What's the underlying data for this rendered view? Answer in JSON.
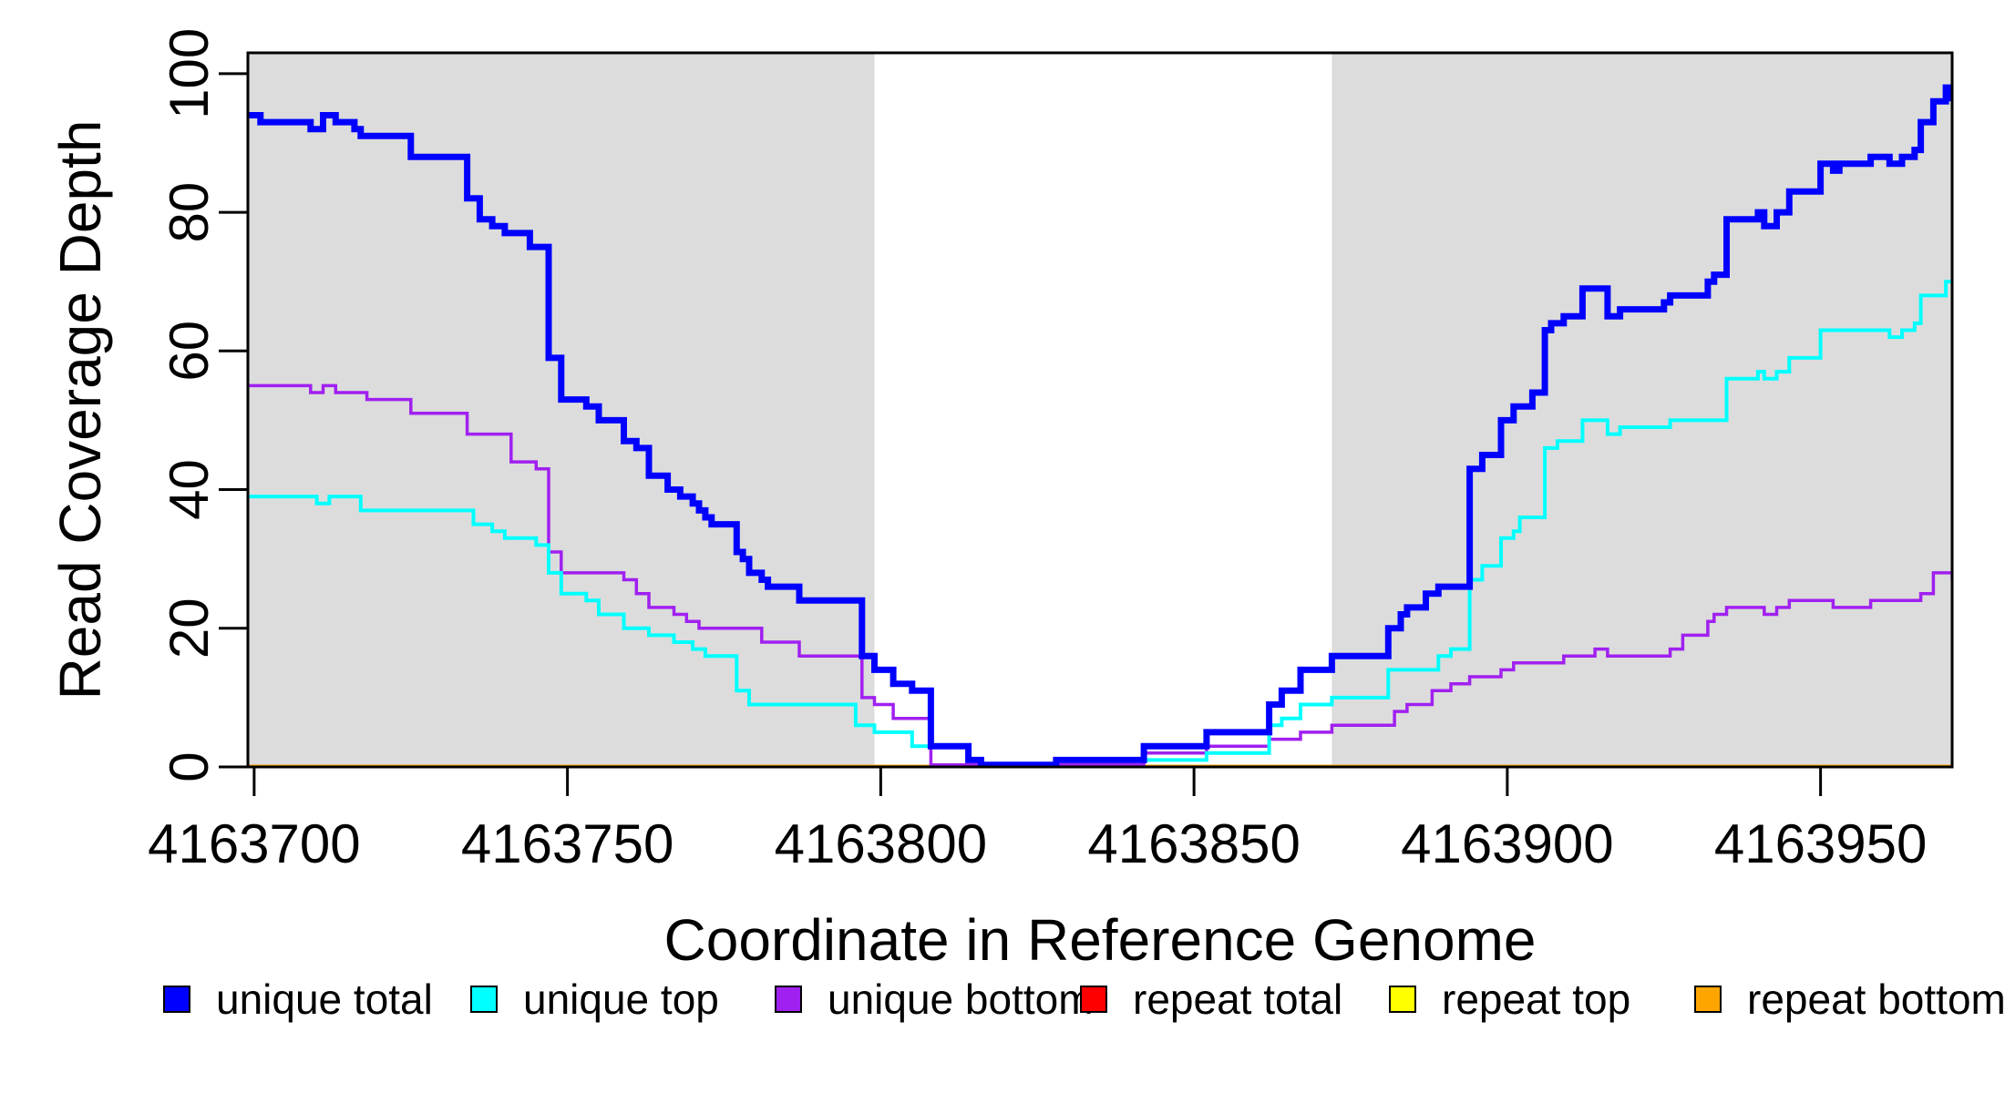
{
  "page": {
    "background": "#FFFFFF"
  },
  "chart_data": {
    "type": "line",
    "subtype": "step",
    "title": "",
    "xlabel": "Coordinate in Reference Genome",
    "ylabel": "Read Coverage Depth",
    "xlim": [
      4163699,
      4163971
    ],
    "ylim": [
      0,
      103
    ],
    "x_ticks": [
      4163700,
      4163750,
      4163800,
      4163850,
      4163900,
      4163950
    ],
    "y_ticks": [
      0,
      20,
      40,
      60,
      80,
      100
    ],
    "grid": false,
    "legend_position": "bottom",
    "plot_background": "#FFFFFF",
    "shaded_band_color": "#DCDCDC",
    "shaded_bands": [
      [
        4163699,
        4163799
      ],
      [
        4163872,
        4163971
      ]
    ],
    "legend": [
      {
        "label": "unique total",
        "color": "#0000FF"
      },
      {
        "label": "unique top",
        "color": "#00FFFF"
      },
      {
        "label": "unique bottom",
        "color": "#A020F0"
      },
      {
        "label": "repeat total",
        "color": "#FF0000"
      },
      {
        "label": "repeat top",
        "color": "#FFFF00"
      },
      {
        "label": "repeat bottom",
        "color": "#FFA500"
      }
    ],
    "series": [
      {
        "name": "unique total",
        "color": "#0000FF",
        "steps": [
          [
            4163699,
            94
          ],
          [
            4163701,
            93
          ],
          [
            4163709,
            92
          ],
          [
            4163711,
            94
          ],
          [
            4163713,
            93
          ],
          [
            4163716,
            92
          ],
          [
            4163717,
            91
          ],
          [
            4163725,
            88
          ],
          [
            4163734,
            82
          ],
          [
            4163736,
            79
          ],
          [
            4163738,
            78
          ],
          [
            4163740,
            77
          ],
          [
            4163744,
            75
          ],
          [
            4163747,
            59
          ],
          [
            4163749,
            53
          ],
          [
            4163753,
            52
          ],
          [
            4163755,
            50
          ],
          [
            4163759,
            47
          ],
          [
            4163761,
            46
          ],
          [
            4163763,
            42
          ],
          [
            4163766,
            40
          ],
          [
            4163768,
            39
          ],
          [
            4163770,
            38
          ],
          [
            4163771,
            37
          ],
          [
            4163772,
            36
          ],
          [
            4163773,
            35
          ],
          [
            4163777,
            31
          ],
          [
            4163778,
            30
          ],
          [
            4163779,
            28
          ],
          [
            4163781,
            27
          ],
          [
            4163782,
            26
          ],
          [
            4163787,
            24
          ],
          [
            4163797,
            16
          ],
          [
            4163799,
            14
          ],
          [
            4163802,
            12
          ],
          [
            4163805,
            11
          ],
          [
            4163808,
            3
          ],
          [
            4163814,
            1
          ],
          [
            4163816,
            0.3
          ],
          [
            4163828,
            1
          ],
          [
            4163842,
            3
          ],
          [
            4163852,
            5
          ],
          [
            4163862,
            9
          ],
          [
            4163864,
            11
          ],
          [
            4163867,
            14
          ],
          [
            4163872,
            16
          ],
          [
            4163881,
            20
          ],
          [
            4163883,
            22
          ],
          [
            4163884,
            23
          ],
          [
            4163887,
            25
          ],
          [
            4163889,
            26
          ],
          [
            4163894,
            43
          ],
          [
            4163896,
            45
          ],
          [
            4163899,
            50
          ],
          [
            4163901,
            52
          ],
          [
            4163904,
            54
          ],
          [
            4163906,
            63
          ],
          [
            4163907,
            64
          ],
          [
            4163909,
            65
          ],
          [
            4163912,
            69
          ],
          [
            4163916,
            65
          ],
          [
            4163918,
            66
          ],
          [
            4163925,
            67
          ],
          [
            4163926,
            68
          ],
          [
            4163932,
            70
          ],
          [
            4163933,
            71
          ],
          [
            4163935,
            79
          ],
          [
            4163940,
            80
          ],
          [
            4163941,
            78
          ],
          [
            4163943,
            80
          ],
          [
            4163945,
            83
          ],
          [
            4163950,
            87
          ],
          [
            4163952,
            86
          ],
          [
            4163953,
            87
          ],
          [
            4163958,
            88
          ],
          [
            4163961,
            87
          ],
          [
            4163963,
            88
          ],
          [
            4163965,
            89
          ],
          [
            4163966,
            93
          ],
          [
            4163968,
            96
          ],
          [
            4163970,
            98
          ],
          [
            4163971,
            96
          ]
        ]
      },
      {
        "name": "unique top",
        "color": "#00FFFF",
        "steps": [
          [
            4163699,
            39
          ],
          [
            4163710,
            38
          ],
          [
            4163712,
            39
          ],
          [
            4163717,
            37
          ],
          [
            4163735,
            35
          ],
          [
            4163738,
            34
          ],
          [
            4163740,
            33
          ],
          [
            4163745,
            32
          ],
          [
            4163747,
            28
          ],
          [
            4163749,
            25
          ],
          [
            4163753,
            24
          ],
          [
            4163755,
            22
          ],
          [
            4163759,
            20
          ],
          [
            4163763,
            19
          ],
          [
            4163767,
            18
          ],
          [
            4163770,
            17
          ],
          [
            4163772,
            16
          ],
          [
            4163777,
            11
          ],
          [
            4163779,
            9
          ],
          [
            4163796,
            6
          ],
          [
            4163799,
            5
          ],
          [
            4163805,
            3
          ],
          [
            4163814,
            1
          ],
          [
            4163816,
            0.3
          ],
          [
            4163828,
            1
          ],
          [
            4163852,
            2
          ],
          [
            4163862,
            6
          ],
          [
            4163864,
            7
          ],
          [
            4163867,
            9
          ],
          [
            4163872,
            10
          ],
          [
            4163881,
            14
          ],
          [
            4163889,
            16
          ],
          [
            4163891,
            17
          ],
          [
            4163894,
            27
          ],
          [
            4163896,
            29
          ],
          [
            4163899,
            33
          ],
          [
            4163901,
            34
          ],
          [
            4163902,
            36
          ],
          [
            4163906,
            46
          ],
          [
            4163908,
            47
          ],
          [
            4163912,
            50
          ],
          [
            4163916,
            48
          ],
          [
            4163918,
            49
          ],
          [
            4163926,
            50
          ],
          [
            4163935,
            56
          ],
          [
            4163940,
            57
          ],
          [
            4163941,
            56
          ],
          [
            4163943,
            57
          ],
          [
            4163945,
            59
          ],
          [
            4163950,
            63
          ],
          [
            4163961,
            62
          ],
          [
            4163963,
            63
          ],
          [
            4163965,
            64
          ],
          [
            4163966,
            68
          ],
          [
            4163970,
            70
          ]
        ]
      },
      {
        "name": "unique bottom",
        "color": "#A020F0",
        "steps": [
          [
            4163699,
            55
          ],
          [
            4163709,
            54
          ],
          [
            4163711,
            55
          ],
          [
            4163713,
            54
          ],
          [
            4163718,
            53
          ],
          [
            4163725,
            51
          ],
          [
            4163734,
            48
          ],
          [
            4163741,
            44
          ],
          [
            4163745,
            43
          ],
          [
            4163747,
            31
          ],
          [
            4163749,
            28
          ],
          [
            4163759,
            27
          ],
          [
            4163761,
            25
          ],
          [
            4163763,
            23
          ],
          [
            4163767,
            22
          ],
          [
            4163769,
            21
          ],
          [
            4163771,
            20
          ],
          [
            4163781,
            18
          ],
          [
            4163787,
            16
          ],
          [
            4163797,
            10
          ],
          [
            4163799,
            9
          ],
          [
            4163802,
            7
          ],
          [
            4163808,
            0.3
          ],
          [
            4163842,
            2
          ],
          [
            4163852,
            3
          ],
          [
            4163862,
            4
          ],
          [
            4163867,
            5
          ],
          [
            4163872,
            6
          ],
          [
            4163882,
            8
          ],
          [
            4163884,
            9
          ],
          [
            4163888,
            11
          ],
          [
            4163891,
            12
          ],
          [
            4163894,
            13
          ],
          [
            4163899,
            14
          ],
          [
            4163901,
            15
          ],
          [
            4163909,
            16
          ],
          [
            4163914,
            17
          ],
          [
            4163916,
            16
          ],
          [
            4163926,
            17
          ],
          [
            4163928,
            19
          ],
          [
            4163932,
            21
          ],
          [
            4163933,
            22
          ],
          [
            4163935,
            23
          ],
          [
            4163941,
            22
          ],
          [
            4163943,
            23
          ],
          [
            4163945,
            24
          ],
          [
            4163952,
            23
          ],
          [
            4163958,
            24
          ],
          [
            4163966,
            25
          ],
          [
            4163968,
            28
          ],
          [
            4163971,
            27
          ]
        ]
      },
      {
        "name": "repeat total",
        "color": "#FF0000",
        "steps": [
          [
            4163699,
            0
          ],
          [
            4163971,
            0
          ]
        ]
      },
      {
        "name": "repeat top",
        "color": "#FFFF00",
        "steps": [
          [
            4163699,
            0
          ],
          [
            4163971,
            0
          ]
        ]
      },
      {
        "name": "repeat bottom",
        "color": "#FFA500",
        "steps": [
          [
            4163699,
            0
          ],
          [
            4163971,
            0
          ]
        ]
      }
    ]
  }
}
